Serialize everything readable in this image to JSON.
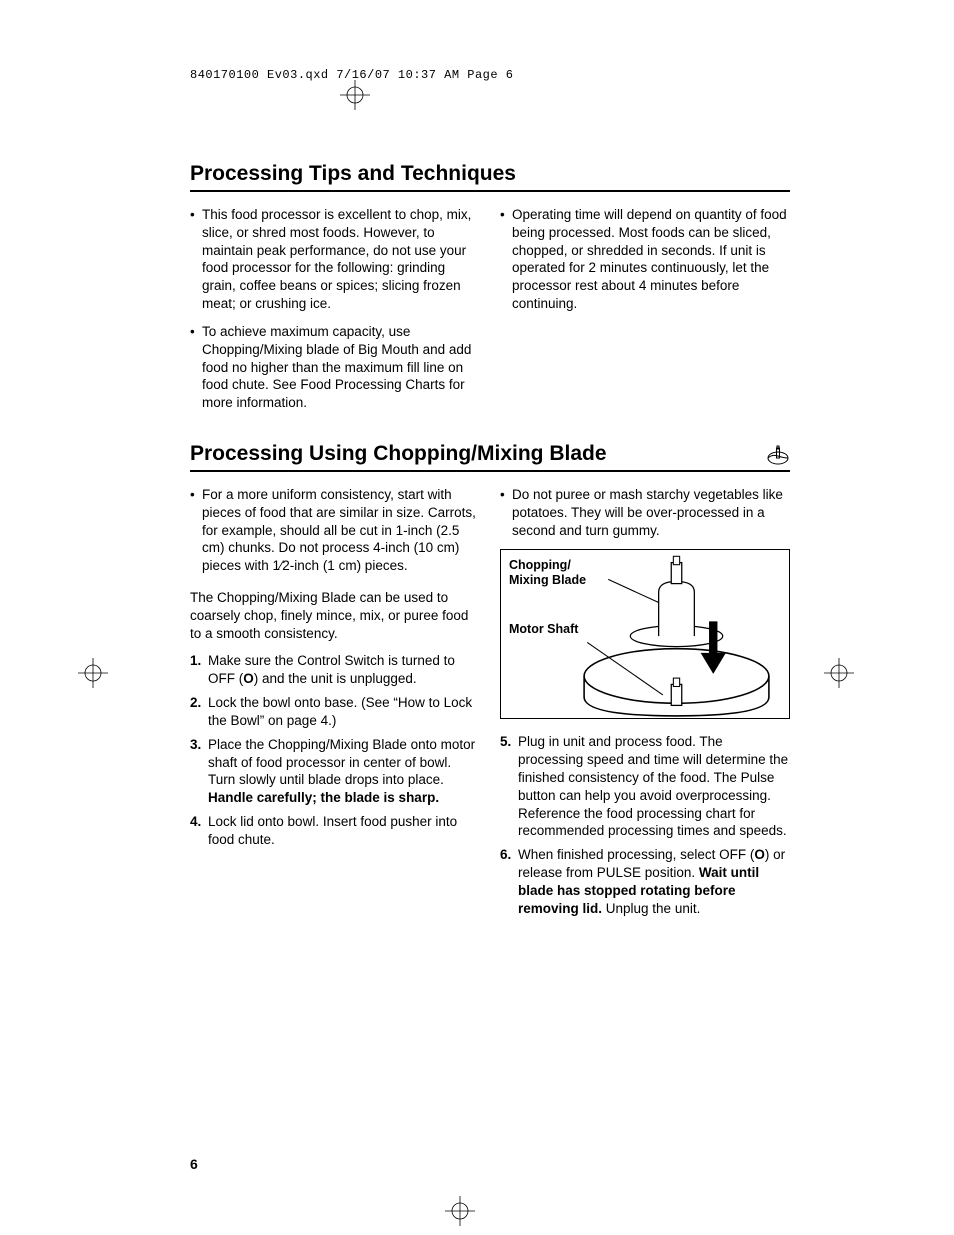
{
  "header": "840170100 Ev03.qxd  7/16/07  10:37 AM  Page 6",
  "section1": {
    "title": "Processing Tips and Techniques",
    "left_bullets": [
      "This food processor is excellent to chop, mix, slice, or shred most foods. However, to maintain peak performance, do not use your food processor for the following: grinding grain, coffee beans or spices; slicing frozen meat; or crushing ice.",
      "To achieve maximum capacity, use Chopping/Mixing blade of Big Mouth and add food no higher than the maximum fill line on food chute. See Food Processing Charts for more information."
    ],
    "right_bullets": [
      "Operating time will depend on quantity of food being processed. Most foods can be sliced, chopped, or shredded in seconds. If unit is operated for 2 minutes continuously, let the processor rest about 4 minutes before continuing."
    ]
  },
  "section2": {
    "title": "Processing Using Chopping/Mixing Blade",
    "left_bullet": "For a more uniform consistency, start with pieces of food that are similar in size. Carrots, for example, should all be cut in 1-inch (2.5 cm) chunks. Do not process 4-inch (10 cm) pieces with 1⁄2-inch (1 cm) pieces.",
    "right_bullet": "Do not puree or mash starchy vegetables like potatoes. They will be over-processed in a second and turn gummy.",
    "intro": "The Chopping/Mixing Blade can be used to coarsely chop, finely mince, mix, or puree food to a smooth consis­tency.",
    "steps_left": [
      {
        "n": "1.",
        "pre": "Make sure the Control Switch is turned to OFF (",
        "bold": "O",
        "post": ") and the unit is unplugged."
      },
      {
        "n": "2.",
        "pre": "Lock the bowl onto base. (See “How to Lock the Bowl” on page 4.)",
        "bold": "",
        "post": ""
      },
      {
        "n": "3.",
        "pre": "Place the Chopping/Mixing Blade onto motor shaft of food processor in center of bowl. Turn slowly until blade drops into place. ",
        "bold": "Handle carefully; the blade is sharp.",
        "post": ""
      },
      {
        "n": "4.",
        "pre": "Lock lid onto bowl. Insert food pusher into food chute.",
        "bold": "",
        "post": ""
      }
    ],
    "diagram": {
      "label1": "Chopping/\nMixing Blade",
      "label2": "Motor Shaft"
    },
    "steps_right": [
      {
        "n": "5.",
        "pre": "Plug in unit and process food. The processing speed and time will determine the finished consistency of the food. The Pulse button can help you avoid overprocessing. Reference the food processing chart for recommended processing times and speeds.",
        "bold": "",
        "post": ""
      },
      {
        "n": "6.",
        "pre": "When finished processing, select OFF (",
        "bold": "O",
        "post": ") or release from PULSE posi­tion. ",
        "bold2": "Wait until blade has stopped rotating before removing lid.",
        "post2": " Unplug the unit."
      }
    ]
  },
  "page_number": "6",
  "colors": {
    "text": "#000000",
    "background": "#ffffff",
    "rule": "#000000"
  }
}
